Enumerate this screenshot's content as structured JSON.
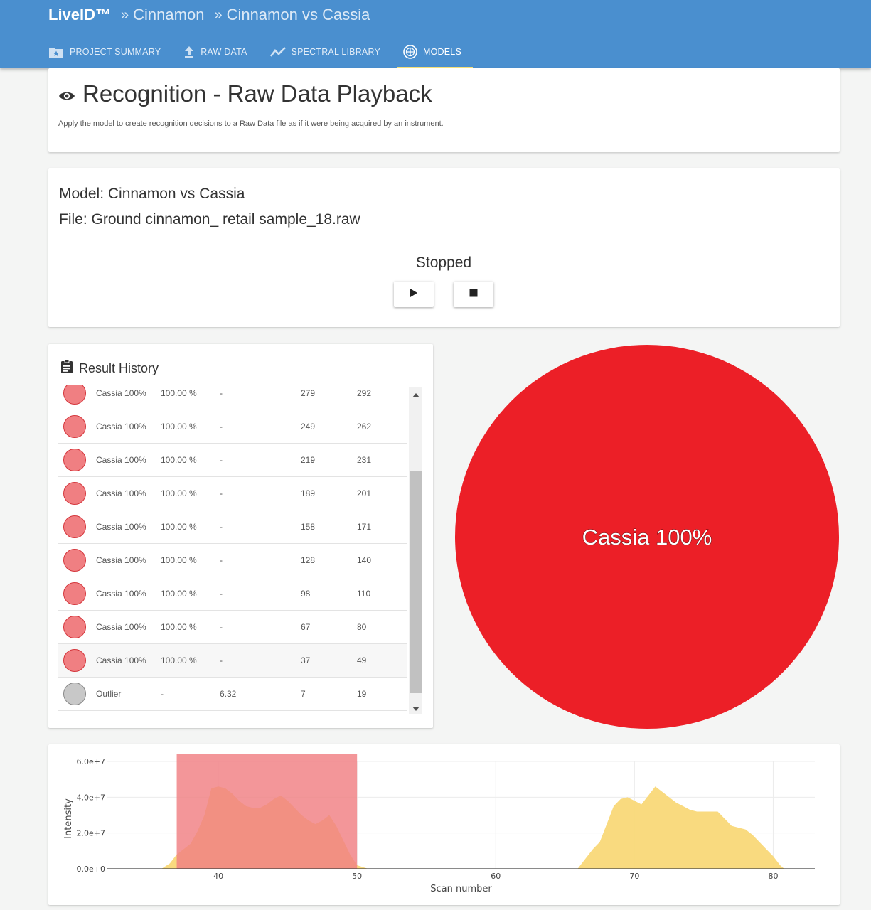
{
  "header": {
    "brand": "LiveID™",
    "breadcrumbs": [
      "Cinnamon",
      "Cinnamon vs Cassia"
    ],
    "separator": "»",
    "tabs": [
      {
        "label": "PROJECT SUMMARY",
        "icon": "folder-star-icon",
        "active": false
      },
      {
        "label": "RAW DATA",
        "icon": "upload-icon",
        "active": false
      },
      {
        "label": "SPECTRAL LIBRARY",
        "icon": "trend-line-icon",
        "active": false
      },
      {
        "label": "MODELS",
        "icon": "globe-icon",
        "active": true
      }
    ]
  },
  "intro": {
    "title": "Recognition - Raw Data Playback",
    "description": "Apply the model to create recognition decisions to a Raw Data file as if it were being acquired by an instrument."
  },
  "playback": {
    "model_line": "Model: Cinnamon vs Cassia",
    "file_line": "File: Ground cinnamon_ retail sample_18.raw",
    "status": "Stopped",
    "play_icon": "play-icon",
    "stop_icon": "stop-icon"
  },
  "result_history": {
    "title": "Result History",
    "rows": [
      {
        "label": "Cassia 100%",
        "percent": "100.00 %",
        "score": "-",
        "start": "279",
        "end": "292",
        "color": "#f07f82"
      },
      {
        "label": "Cassia 100%",
        "percent": "100.00 %",
        "score": "-",
        "start": "249",
        "end": "262",
        "color": "#f07f82"
      },
      {
        "label": "Cassia 100%",
        "percent": "100.00 %",
        "score": "-",
        "start": "219",
        "end": "231",
        "color": "#f07f82"
      },
      {
        "label": "Cassia 100%",
        "percent": "100.00 %",
        "score": "-",
        "start": "189",
        "end": "201",
        "color": "#f07f82"
      },
      {
        "label": "Cassia 100%",
        "percent": "100.00 %",
        "score": "-",
        "start": "158",
        "end": "171",
        "color": "#f07f82"
      },
      {
        "label": "Cassia 100%",
        "percent": "100.00 %",
        "score": "-",
        "start": "128",
        "end": "140",
        "color": "#f07f82"
      },
      {
        "label": "Cassia 100%",
        "percent": "100.00 %",
        "score": "-",
        "start": "98",
        "end": "110",
        "color": "#f07f82"
      },
      {
        "label": "Cassia 100%",
        "percent": "100.00 %",
        "score": "-",
        "start": "67",
        "end": "80",
        "color": "#f07f82"
      },
      {
        "label": "Cassia 100%",
        "percent": "100.00 %",
        "score": "-",
        "start": "37",
        "end": "49",
        "color": "#f07f82"
      },
      {
        "label": "Outlier",
        "percent": "-",
        "score": "6.32",
        "start": "7",
        "end": "19",
        "color": "#c8c8c8"
      }
    ]
  },
  "pie": {
    "label": "Cassia 100%",
    "value": 100,
    "color": "#ec1f27"
  },
  "chart_data": {
    "type": "area",
    "xlabel": "Scan number",
    "ylabel": "Intensity",
    "xlim": [
      32,
      83
    ],
    "ylim": [
      0,
      60000000
    ],
    "x_ticks": [
      40,
      50,
      60,
      70,
      80
    ],
    "x_tick_labels": [
      "40",
      "50",
      "60",
      "70",
      "80"
    ],
    "y_ticks": [
      0,
      20000000,
      40000000,
      60000000
    ],
    "y_tick_labels": [
      "0.0e+0",
      "2.0e+7",
      "4.0e+7",
      "6.0e+7"
    ],
    "grid": true,
    "highlight": {
      "x_start": 37,
      "x_end": 50,
      "color": "#f07f82"
    },
    "series": [
      {
        "color": "#f9d878",
        "x": [
          35.9,
          36.5,
          37,
          37.5,
          38,
          38.5,
          39,
          39.5,
          40,
          40.5,
          41,
          41.5,
          42,
          42.5,
          43,
          43.5,
          44,
          44.5,
          45,
          45.5,
          46,
          46.5,
          47,
          47.5,
          48,
          48.5,
          49,
          49.5,
          50,
          50.8
        ],
        "y": [
          0,
          3000000,
          8000000,
          11000000,
          14000000,
          21000000,
          30000000,
          45000000,
          46000000,
          45000000,
          42000000,
          38000000,
          35000000,
          34000000,
          34000000,
          36000000,
          39000000,
          41000000,
          38000000,
          34000000,
          30000000,
          27000000,
          25000000,
          27000000,
          30000000,
          24000000,
          16000000,
          8000000,
          2000000,
          0
        ]
      },
      {
        "color": "#f9d878",
        "x": [
          65.9,
          66.5,
          67,
          67.5,
          68,
          68.5,
          69,
          69.5,
          70,
          70.5,
          71,
          71.5,
          72,
          72.5,
          73,
          73.5,
          74,
          74.5,
          75,
          75.5,
          76,
          76.5,
          77,
          77.5,
          78,
          78.5,
          79,
          79.5,
          80,
          80.5,
          80.8
        ],
        "y": [
          0,
          6000000,
          11000000,
          15000000,
          25000000,
          35000000,
          39000000,
          40000000,
          38000000,
          36000000,
          41000000,
          46000000,
          43000000,
          40000000,
          37000000,
          35000000,
          33000000,
          32000000,
          32000000,
          32000000,
          32000000,
          28000000,
          24000000,
          23000000,
          22000000,
          19000000,
          15000000,
          11000000,
          7000000,
          2000000,
          0
        ]
      }
    ]
  }
}
